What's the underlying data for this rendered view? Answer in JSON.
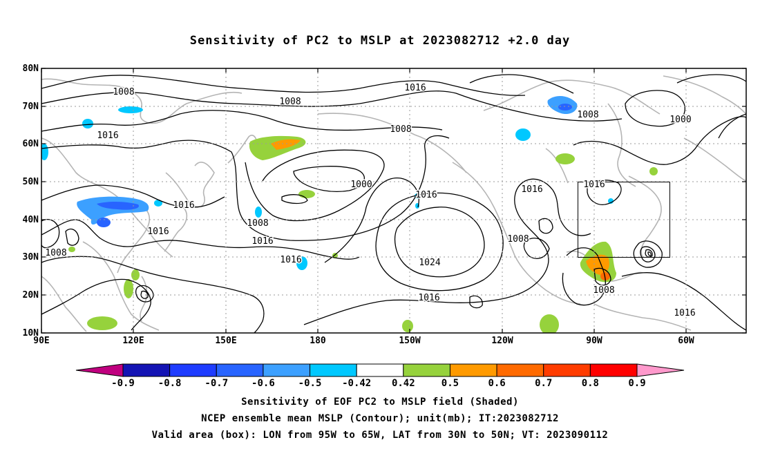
{
  "title": "Sensitivity of PC2 to MSLP at 2023082712 +2.0 day",
  "map": {
    "lat_labels": [
      "80N",
      "70N",
      "60N",
      "50N",
      "40N",
      "30N",
      "20N",
      "10N"
    ],
    "lon_labels": [
      "90E",
      "120E",
      "150E",
      "180",
      "150W",
      "120W",
      "90W",
      "60W"
    ],
    "contour_labels": [
      {
        "text": "1008"
      },
      {
        "text": "1008"
      },
      {
        "text": "1016"
      },
      {
        "text": "1016"
      },
      {
        "text": "1008"
      },
      {
        "text": "1000"
      },
      {
        "text": "1008"
      },
      {
        "text": "1000"
      },
      {
        "text": "1016"
      },
      {
        "text": "1016"
      },
      {
        "text": "1016"
      },
      {
        "text": "1008"
      },
      {
        "text": "1016"
      },
      {
        "text": "1008"
      },
      {
        "text": "1016"
      },
      {
        "text": "1016"
      },
      {
        "text": "1008"
      },
      {
        "text": "1024"
      },
      {
        "text": "1016"
      },
      {
        "text": "1008"
      },
      {
        "text": "1016"
      }
    ],
    "valid_box": {
      "lon_from": "95W",
      "lon_to": "65W",
      "lat_from": "30N",
      "lat_to": "50N"
    }
  },
  "colorbar": {
    "colors": [
      "#c0007f",
      "#1414b4",
      "#1e3cff",
      "#2864ff",
      "#3ca0ff",
      "#00c8ff",
      "#ffffff",
      "#96d23c",
      "#ff9a00",
      "#ff6a00",
      "#ff3c00",
      "#ff0000",
      "#ff99cc"
    ],
    "labels": [
      "-0.9",
      "-0.8",
      "-0.7",
      "-0.6",
      "-0.5",
      "-0.42",
      "0.42",
      "0.5",
      "0.6",
      "0.7",
      "0.8",
      "0.9"
    ]
  },
  "captions": {
    "line1": "Sensitivity of EOF PC2 to MSLP field (Shaded)",
    "line2": "NCEP ensemble mean MSLP (Contour); unit(mb); IT:2023082712",
    "line3": "Valid area (box): LON from 95W to 65W, LAT from 30N to 50N; VT: 2023090112"
  }
}
